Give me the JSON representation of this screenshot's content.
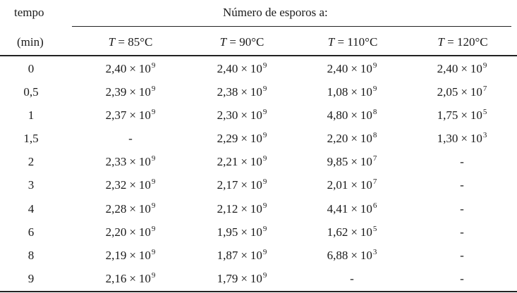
{
  "table": {
    "row_header_top": "tempo",
    "row_header_bottom": "(min)",
    "group_header": "Número de esporos a:",
    "columns": [
      {
        "var": "T",
        "rest": " = 85°C"
      },
      {
        "var": "T",
        "rest": " = 90°C"
      },
      {
        "var": "T",
        "rest": " = 110°C"
      },
      {
        "var": "T",
        "rest": " = 120°C"
      }
    ],
    "rows": [
      {
        "time": "0",
        "values": [
          [
            "2,40",
            "9"
          ],
          [
            "2,40",
            "9"
          ],
          [
            "2,40",
            "9"
          ],
          [
            "2,40",
            "9"
          ]
        ]
      },
      {
        "time": "0,5",
        "values": [
          [
            "2,39",
            "9"
          ],
          [
            "2,38",
            "9"
          ],
          [
            "1,08",
            "9"
          ],
          [
            "2,05",
            "7"
          ]
        ]
      },
      {
        "time": "1",
        "values": [
          [
            "2,37",
            "9"
          ],
          [
            "2,30",
            "9"
          ],
          [
            "4,80",
            "8"
          ],
          [
            "1,75",
            "5"
          ]
        ]
      },
      {
        "time": "1,5",
        "values": [
          "-",
          [
            "2,29",
            "9"
          ],
          [
            "2,20",
            "8"
          ],
          [
            "1,30",
            "3"
          ]
        ]
      },
      {
        "time": "2",
        "values": [
          [
            "2,33",
            "9"
          ],
          [
            "2,21",
            "9"
          ],
          [
            "9,85",
            "7"
          ],
          "-"
        ]
      },
      {
        "time": "3",
        "values": [
          [
            "2,32",
            "9"
          ],
          [
            "2,17",
            "9"
          ],
          [
            "2,01",
            "7"
          ],
          "-"
        ]
      },
      {
        "time": "4",
        "values": [
          [
            "2,28",
            "9"
          ],
          [
            "2,12",
            "9"
          ],
          [
            "4,41",
            "6"
          ],
          "-"
        ]
      },
      {
        "time": "6",
        "values": [
          [
            "2,20",
            "9"
          ],
          [
            "1,95",
            "9"
          ],
          [
            "1,62",
            "5"
          ],
          "-"
        ]
      },
      {
        "time": "8",
        "values": [
          [
            "2,19",
            "9"
          ],
          [
            "1,87",
            "9"
          ],
          [
            "6,88",
            "3"
          ],
          "-"
        ]
      },
      {
        "time": "9",
        "values": [
          [
            "2,16",
            "9"
          ],
          [
            "1,79",
            "9"
          ],
          "-",
          "-"
        ]
      }
    ],
    "times_sign": "×",
    "base": "10"
  }
}
